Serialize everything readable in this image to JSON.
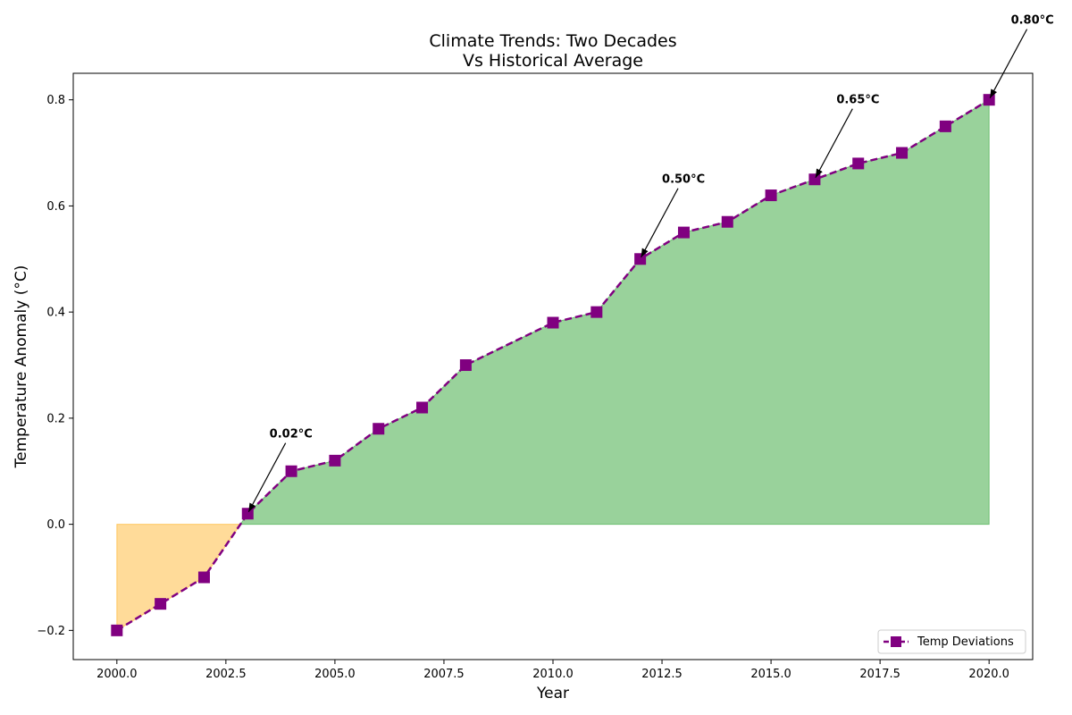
{
  "chart_data": {
    "type": "line",
    "title_line1": "Climate Trends: Two Decades",
    "title_line2": "Vs Historical Average",
    "xlabel": "Year",
    "ylabel": "Temperature Anomaly (°C)",
    "xlim": [
      1999.0,
      2021.0
    ],
    "ylim": [
      -0.255,
      0.85
    ],
    "xticks": [
      2000.0,
      2002.5,
      2005.0,
      2007.5,
      2010.0,
      2012.5,
      2015.0,
      2017.5,
      2020.0
    ],
    "xtick_labels": [
      "2000.0",
      "2002.5",
      "2005.0",
      "2007.5",
      "2010.0",
      "2012.5",
      "2015.0",
      "2017.5",
      "2020.0"
    ],
    "yticks": [
      -0.2,
      0.0,
      0.2,
      0.4,
      0.6,
      0.8
    ],
    "ytick_labels": [
      "−0.2",
      "0.0",
      "0.2",
      "0.4",
      "0.6",
      "0.8"
    ],
    "series": [
      {
        "name": "Temp Deviations",
        "color": "#800080",
        "marker": "square",
        "linestyle": "dashed",
        "x": [
          2000,
          2001,
          2002,
          2003,
          2004,
          2005,
          2006,
          2007,
          2008,
          2010,
          2011,
          2012,
          2013,
          2014,
          2015,
          2016,
          2017,
          2018,
          2019,
          2020
        ],
        "y": [
          -0.2,
          -0.15,
          -0.1,
          0.02,
          0.1,
          0.12,
          0.18,
          0.22,
          0.3,
          0.38,
          0.4,
          0.5,
          0.55,
          0.57,
          0.62,
          0.65,
          0.68,
          0.7,
          0.75,
          0.8
        ]
      }
    ],
    "fill_above_color": "#4caf50",
    "fill_below_color": "#ffa500",
    "annotations": [
      {
        "text": "0.02°C",
        "x": 2003,
        "y": 0.02,
        "text_x": 2003.5,
        "text_y": 0.17
      },
      {
        "text": "0.50°C",
        "x": 2012,
        "y": 0.5,
        "text_x": 2012.5,
        "text_y": 0.65
      },
      {
        "text": "0.65°C",
        "x": 2016,
        "y": 0.65,
        "text_x": 2016.5,
        "text_y": 0.8
      },
      {
        "text": "0.80°C",
        "x": 2020,
        "y": 0.8,
        "text_x": 2020.5,
        "text_y": 0.95
      }
    ],
    "legend_position": "bottom-right",
    "grid": false
  }
}
